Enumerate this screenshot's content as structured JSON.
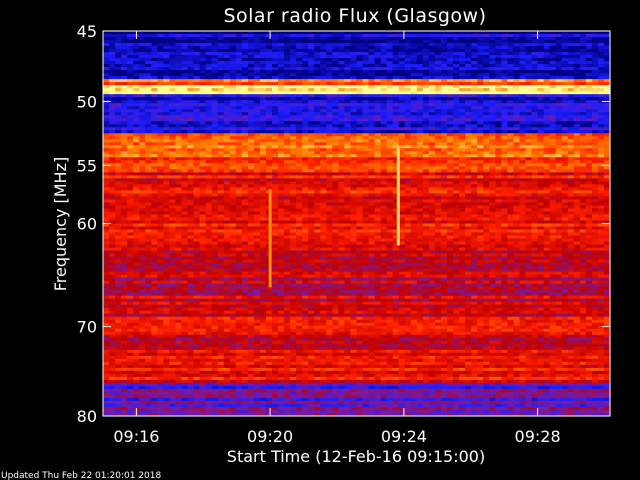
{
  "chart_data": {
    "type": "heatmap",
    "title": "Solar radio Flux (Glasgow)",
    "xlabel": "Start Time (12-Feb-16 09:15:00)",
    "ylabel": "Frequency [MHz]",
    "x_range": [
      "09:15:00",
      "09:30:10"
    ],
    "y_range": [
      45,
      80
    ],
    "y_scale": "log",
    "y_ticks": [
      45,
      50,
      55,
      60,
      70,
      80
    ],
    "x_ticks": [
      "09:16",
      "09:20",
      "09:24",
      "09:28"
    ],
    "x_tick_minutes": [
      16,
      20,
      24,
      28
    ],
    "colormap": [
      "#000080",
      "#1e1eff",
      "#7a1aa0",
      "#c00000",
      "#ff2000",
      "#ff8000",
      "#ffff90"
    ],
    "bands": [
      {
        "from": 45.0,
        "to": 48.4,
        "level": 0.06
      },
      {
        "from": 48.4,
        "to": 48.9,
        "level": 0.8
      },
      {
        "from": 48.9,
        "to": 49.5,
        "level": 0.96
      },
      {
        "from": 49.5,
        "to": 52.4,
        "level": 0.12
      },
      {
        "from": 52.4,
        "to": 53.4,
        "level": 0.82
      },
      {
        "from": 53.4,
        "to": 55.5,
        "level": 0.74
      },
      {
        "from": 55.5,
        "to": 62.0,
        "level": 0.6
      },
      {
        "from": 62.0,
        "to": 67.5,
        "level": 0.5
      },
      {
        "from": 67.5,
        "to": 72.0,
        "level": 0.56
      },
      {
        "from": 72.0,
        "to": 76.0,
        "level": 0.6
      },
      {
        "from": 76.0,
        "to": 80.0,
        "level": 0.3
      }
    ],
    "events": [
      {
        "time": "09:23:50",
        "from": 53.5,
        "to": 62.0,
        "level": 0.95
      },
      {
        "time": "09:20:00",
        "from": 57.0,
        "to": 66.0,
        "level": 0.85
      }
    ]
  },
  "footer": {
    "updated": "Updated Thu Feb 22 01:20:01 2018"
  }
}
